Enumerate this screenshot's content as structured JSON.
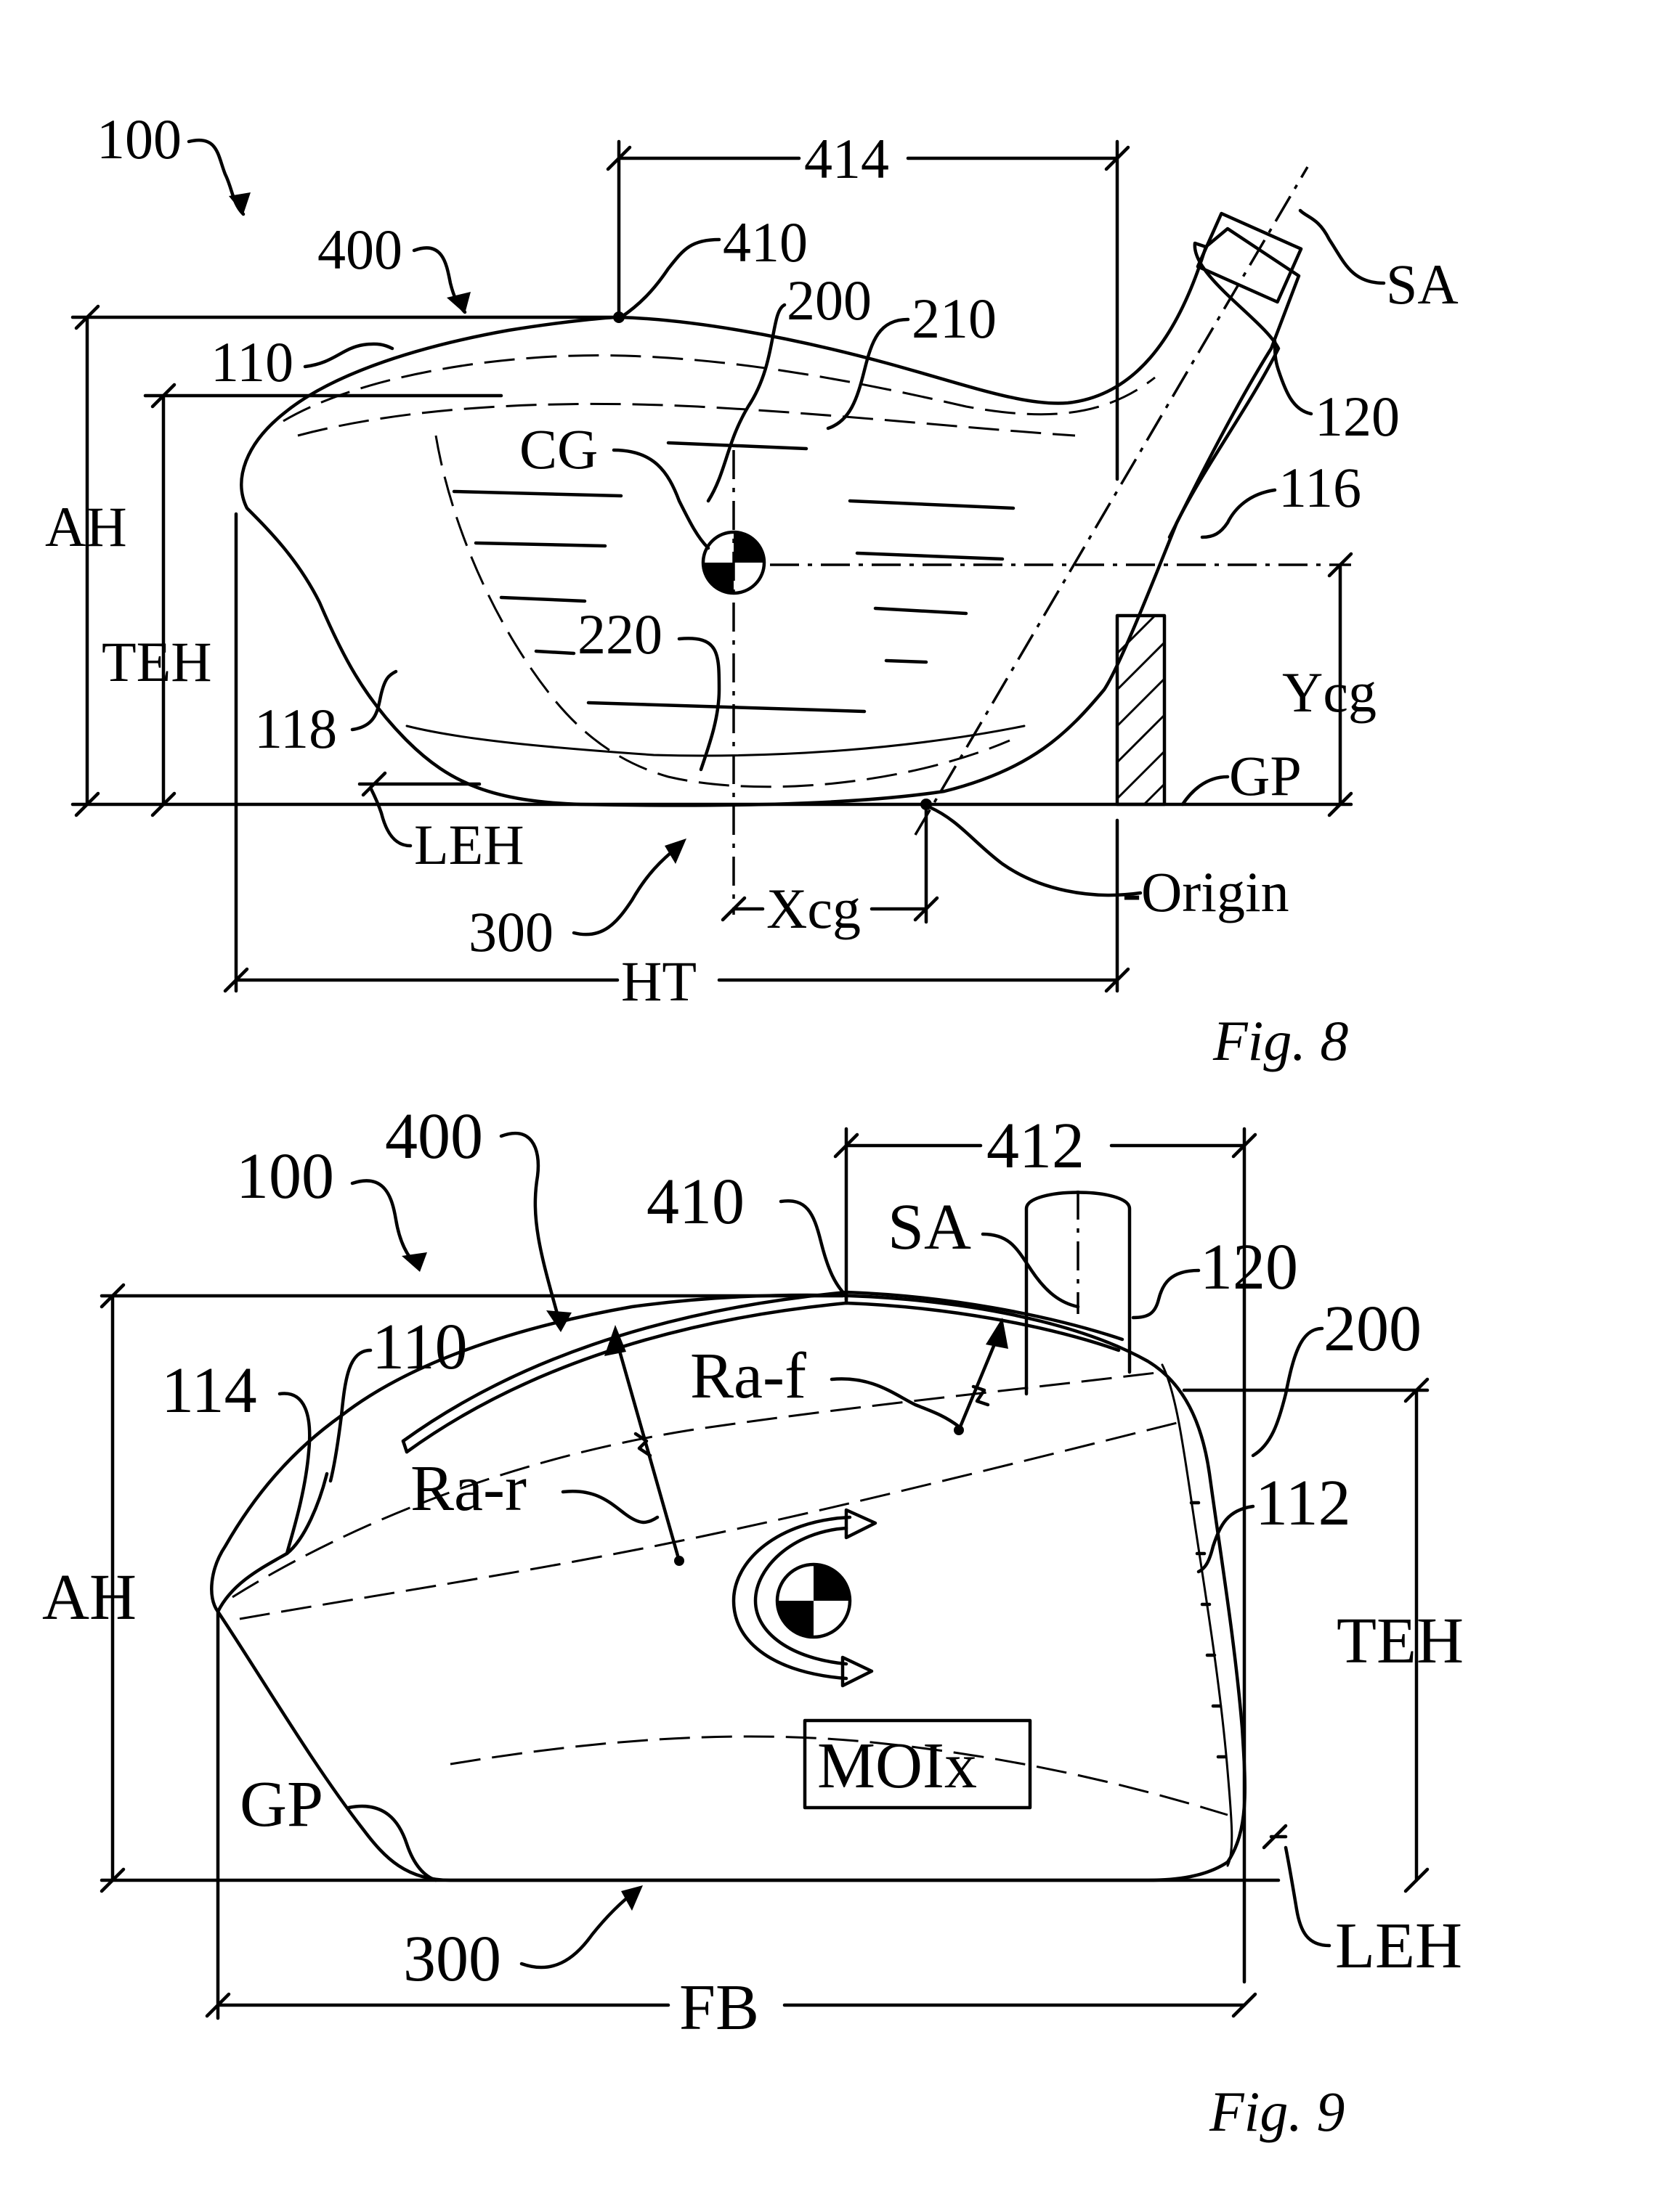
{
  "fig8": {
    "caption": "Fig. 8",
    "labels": {
      "ref_100": "100",
      "ref_400": "400",
      "ref_410": "410",
      "ref_414": "414",
      "ref_200": "200",
      "ref_210": "210",
      "ref_SA": "SA",
      "ref_110": "110",
      "ref_120": "120",
      "ref_CG": "CG",
      "ref_116": "116",
      "ref_AH": "AH",
      "ref_TEH": "TEH",
      "ref_220": "220",
      "ref_Ycg": "Ycg",
      "ref_118": "118",
      "ref_GP": "GP",
      "ref_LEH": "LEH",
      "ref_Origin": "-Origin",
      "ref_Xcg": "Xcg",
      "ref_300": "300",
      "ref_HT": "HT"
    }
  },
  "fig9": {
    "caption": "Fig. 9",
    "labels": {
      "ref_100": "100",
      "ref_400": "400",
      "ref_412": "412",
      "ref_410": "410",
      "ref_SA": "SA",
      "ref_120": "120",
      "ref_200": "200",
      "ref_110": "110",
      "ref_114": "114",
      "ref_Raf": "Ra-f",
      "ref_Rar": "Ra-r",
      "ref_112": "112",
      "ref_AH": "AH",
      "ref_TEH": "TEH",
      "ref_MOIx": "MOIx",
      "ref_GP": "GP",
      "ref_LEH": "LEH",
      "ref_300": "300",
      "ref_FB": "FB"
    }
  }
}
